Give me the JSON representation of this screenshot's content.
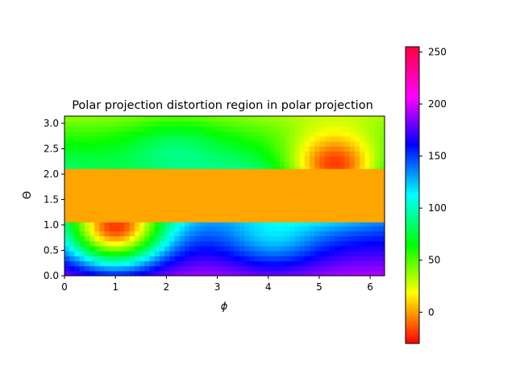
{
  "chart_data": {
    "type": "heatmap",
    "title": "Polar projection distortion region in polar projection",
    "xlabel": "ϕ",
    "ylabel": "Θ",
    "xlim": [
      0,
      6.2832
    ],
    "ylim": [
      0,
      3.1416
    ],
    "xticks": [
      "0",
      "1",
      "2",
      "3",
      "4",
      "5",
      "6"
    ],
    "yticks": [
      "0.0",
      "0.5",
      "1.0",
      "1.5",
      "2.0",
      "2.5",
      "3.0"
    ],
    "colormap": "hsv",
    "colorbar": {
      "range": [
        -30,
        255
      ],
      "ticks": [
        "0",
        "50",
        "100",
        "150",
        "200",
        "250"
      ]
    },
    "overlay_band": {
      "theta_min": 1.05,
      "theta_max": 2.1,
      "color": "#ffa500"
    },
    "field": {
      "centers": [
        {
          "phi": 1.0,
          "theta": 1.0,
          "value": -20
        },
        {
          "phi": 4.1,
          "theta": 1.0,
          "value": 120
        },
        {
          "phi": 2.2,
          "theta": 2.2,
          "value": 95
        },
        {
          "phi": 5.3,
          "theta": 2.2,
          "value": -20
        }
      ],
      "background_bottom": 200,
      "background_top": 40
    }
  }
}
